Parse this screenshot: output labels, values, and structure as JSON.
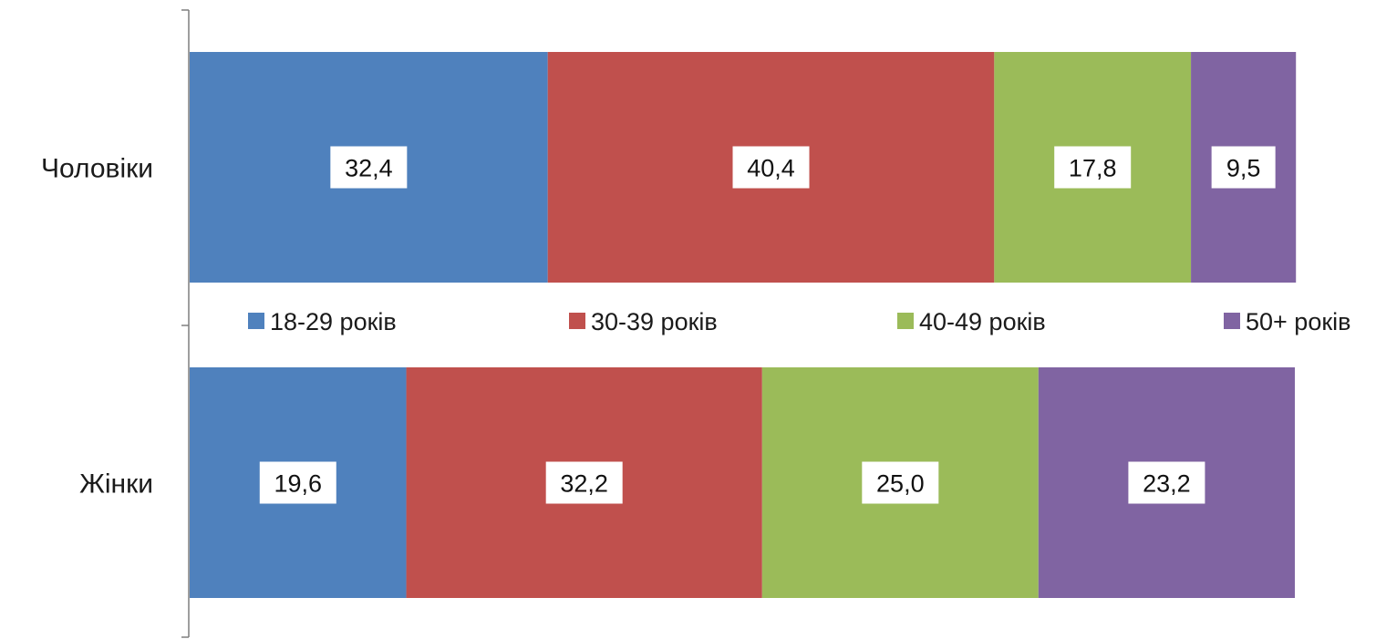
{
  "chart_data": {
    "type": "bar",
    "orientation": "horizontal",
    "stacked": true,
    "categories": [
      "Чоловіки",
      "Жінки"
    ],
    "series": [
      {
        "name": "18-29 років",
        "color": "#4f81bd",
        "values": [
          32.4,
          19.6
        ],
        "labels": [
          "32,4",
          "19,6"
        ]
      },
      {
        "name": "30-39 років",
        "color": "#c0504d",
        "values": [
          40.4,
          32.2
        ],
        "labels": [
          "40,4",
          "32,2"
        ]
      },
      {
        "name": "40-49 років",
        "color": "#9bbb59",
        "values": [
          17.8,
          25.0
        ],
        "labels": [
          "17,8",
          "25,0"
        ]
      },
      {
        "name": "50+ років",
        "color": "#8064a2",
        "values": [
          9.5,
          23.2
        ],
        "labels": [
          "9,5",
          "23,2"
        ]
      }
    ],
    "xlim": [
      0,
      100
    ],
    "grid": false,
    "legend": "center",
    "title": "",
    "xlabel": "",
    "ylabel": ""
  }
}
